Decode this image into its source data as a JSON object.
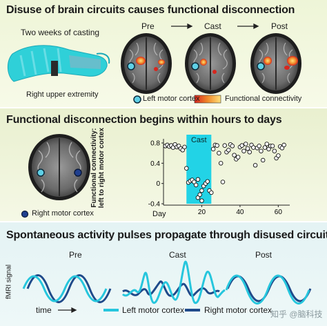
{
  "panel1": {
    "title": "Disuse of brain circuits causes functional disconnection",
    "casting_label": "Two weeks of casting",
    "extremity_label": "Right upper extremity",
    "stages": [
      "Pre",
      "Cast",
      "Post"
    ],
    "legend_left_motor": "Left motor cortex",
    "legend_fc": "Functional connectivity",
    "colors": {
      "left_motor": "#5fd0e6",
      "fc_low": "#d7261e",
      "fc_high": "#ffd36b",
      "cast": "#2fd0d8"
    }
  },
  "panel2": {
    "title": "Functional disconnection begins within hours to days",
    "right_motor_label": "Right motor cortex",
    "colors": {
      "right_motor": "#1f3f8f",
      "cast_band": "#22d3e6"
    }
  },
  "panel3": {
    "title": "Spontaneous activity pulses propagate through disused circuits",
    "stages": [
      "Pre",
      "Cast",
      "Post"
    ],
    "ylabel": "fMRI signal",
    "xlabel": "time",
    "legend_left": "Left motor cortex",
    "legend_right": "Right motor cortex",
    "colors": {
      "left": "#26c6dd",
      "right": "#1f4a8a"
    }
  },
  "watermark": "知乎 @脑科技",
  "chart_data": {
    "type": "scatter",
    "title": "",
    "xlabel": "Day",
    "ylabel": "Functional connectivity: left to right motor cortex",
    "xlim": [
      0,
      66
    ],
    "ylim": [
      -0.4,
      0.8
    ],
    "xticks": [
      20,
      40,
      60
    ],
    "yticks": [
      -0.4,
      0.0,
      0.4,
      0.8
    ],
    "ytick_labels": [
      "-0.4",
      "0",
      "0.4",
      "0.8"
    ],
    "cast_band": {
      "label": "Cast",
      "x_range": [
        12,
        25
      ]
    },
    "x": [
      1,
      2,
      3,
      4,
      5,
      6,
      7,
      8,
      9,
      10,
      11,
      12,
      13,
      14,
      15,
      16,
      17,
      18,
      19,
      20,
      21,
      22,
      23,
      24,
      25,
      26,
      27,
      28,
      29,
      30,
      31,
      32,
      33,
      34,
      35,
      36,
      37,
      38,
      39,
      40,
      41,
      42,
      43,
      44,
      45,
      46,
      47,
      48,
      49,
      50,
      51,
      52,
      53,
      54,
      55,
      56,
      57,
      58,
      59,
      60,
      61,
      62,
      63,
      18,
      20
    ],
    "y": [
      0.74,
      0.76,
      0.73,
      0.75,
      0.71,
      0.77,
      0.72,
      0.74,
      0.69,
      0.66,
      0.72,
      0.3,
      0.02,
      0.05,
      0.07,
      0.03,
      -0.03,
      -0.28,
      -0.22,
      -0.14,
      -0.05,
      0.0,
      0.04,
      -0.14,
      -0.18,
      0.68,
      0.76,
      0.75,
      0.6,
      0.4,
      0.03,
      0.75,
      0.62,
      0.66,
      0.77,
      0.74,
      0.56,
      0.48,
      0.52,
      0.72,
      0.75,
      0.64,
      0.78,
      0.69,
      0.62,
      0.76,
      0.71,
      0.36,
      0.7,
      0.74,
      0.64,
      0.46,
      0.71,
      0.78,
      0.68,
      0.74,
      0.74,
      0.64,
      0.5,
      0.55,
      0.73,
      0.7,
      0.76,
      0.08,
      -0.34
    ]
  }
}
